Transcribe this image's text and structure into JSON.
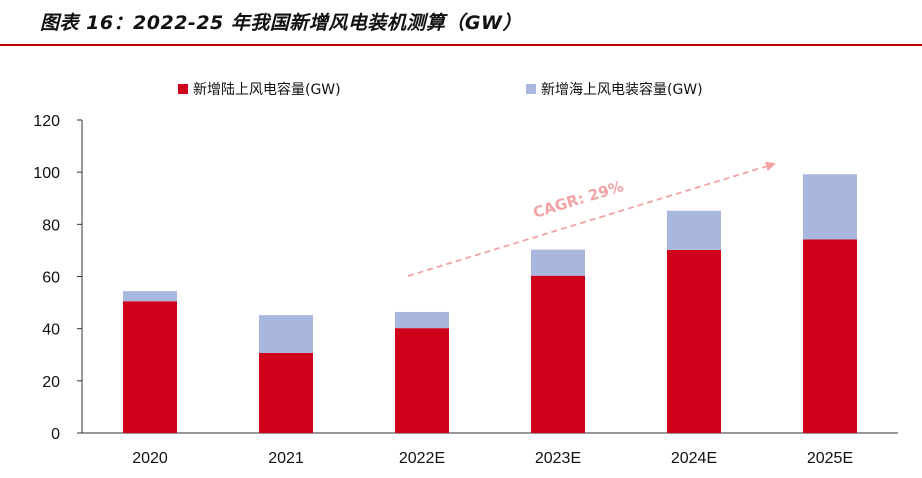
{
  "figure_title": "图表 16：2022-25 年我国新增风电装机测算（GW）",
  "chart_data": {
    "type": "bar",
    "stacked": true,
    "title": "图表 16：2022-25 年我国新增风电装机测算（GW）",
    "categories": [
      "2020",
      "2021",
      "2022E",
      "2023E",
      "2024E",
      "2025E"
    ],
    "series": [
      {
        "name": "新增陆上风电容量(GW)",
        "color": "#d0021b",
        "values": [
          50.5,
          30.7,
          40.2,
          60.3,
          70.2,
          74.2
        ]
      },
      {
        "name": "新增海上风电装容量(GW)",
        "color": "#a9b7df",
        "values": [
          3.9,
          14.5,
          6.2,
          10.0,
          15.0,
          25.0
        ]
      }
    ],
    "ylim": [
      0,
      120
    ],
    "yticks": [
      "0",
      "20",
      "40",
      "60",
      "80",
      "100",
      "120"
    ],
    "xlabel": "",
    "ylabel": "",
    "legend_position": "top",
    "annotation": {
      "text": "CAGR: 29%",
      "color": "#f2a3a3"
    }
  }
}
